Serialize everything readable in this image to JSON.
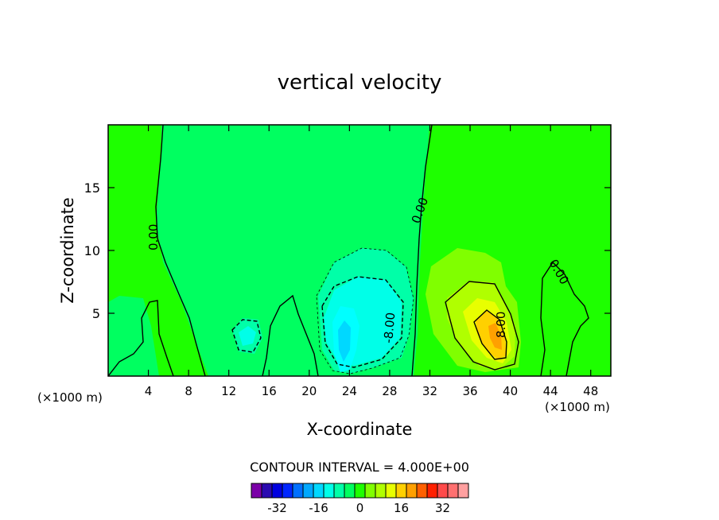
{
  "chart_data": {
    "type": "contour",
    "title": "vertical velocity",
    "xlabel": "X-coordinate",
    "ylabel": "Z-coordinate",
    "x_unit": "(×1000 m)",
    "xlim": [
      0,
      50
    ],
    "ylim": [
      0,
      20
    ],
    "x_ticks": [
      4,
      8,
      12,
      16,
      20,
      24,
      28,
      32,
      36,
      40,
      44,
      48
    ],
    "y_ticks": [
      5,
      10,
      15
    ],
    "contour_interval_text": "CONTOUR INTERVAL = 4.000E+00",
    "contour_labels": [
      "0.00",
      "0.00",
      "0.00",
      "-8.00",
      "8.00"
    ],
    "features": [
      {
        "kind": "updraft",
        "center": [
          38.5,
          3.5
        ],
        "peak": 22
      },
      {
        "kind": "downdraft",
        "center": [
          23.5,
          3.5
        ],
        "peak": -18
      },
      {
        "kind": "downdraft",
        "center": [
          14,
          3
        ],
        "peak": -6
      }
    ],
    "colorbar": {
      "tick_labels": [
        "-32",
        "-16",
        "0",
        "16",
        "32"
      ],
      "tick_values": [
        -32,
        -16,
        0,
        16,
        32
      ],
      "colors": [
        "#7b00a8",
        "#2a0ab0",
        "#0000e0",
        "#0026ff",
        "#0070ff",
        "#00a8ff",
        "#00d8ff",
        "#00ffe8",
        "#00ffa8",
        "#00ff60",
        "#1eff00",
        "#80ff00",
        "#b0ff00",
        "#e8ff00",
        "#ffd000",
        "#ffa000",
        "#ff6000",
        "#ff2000",
        "#ff4a4a",
        "#ff7070",
        "#ffa0a0"
      ]
    }
  }
}
